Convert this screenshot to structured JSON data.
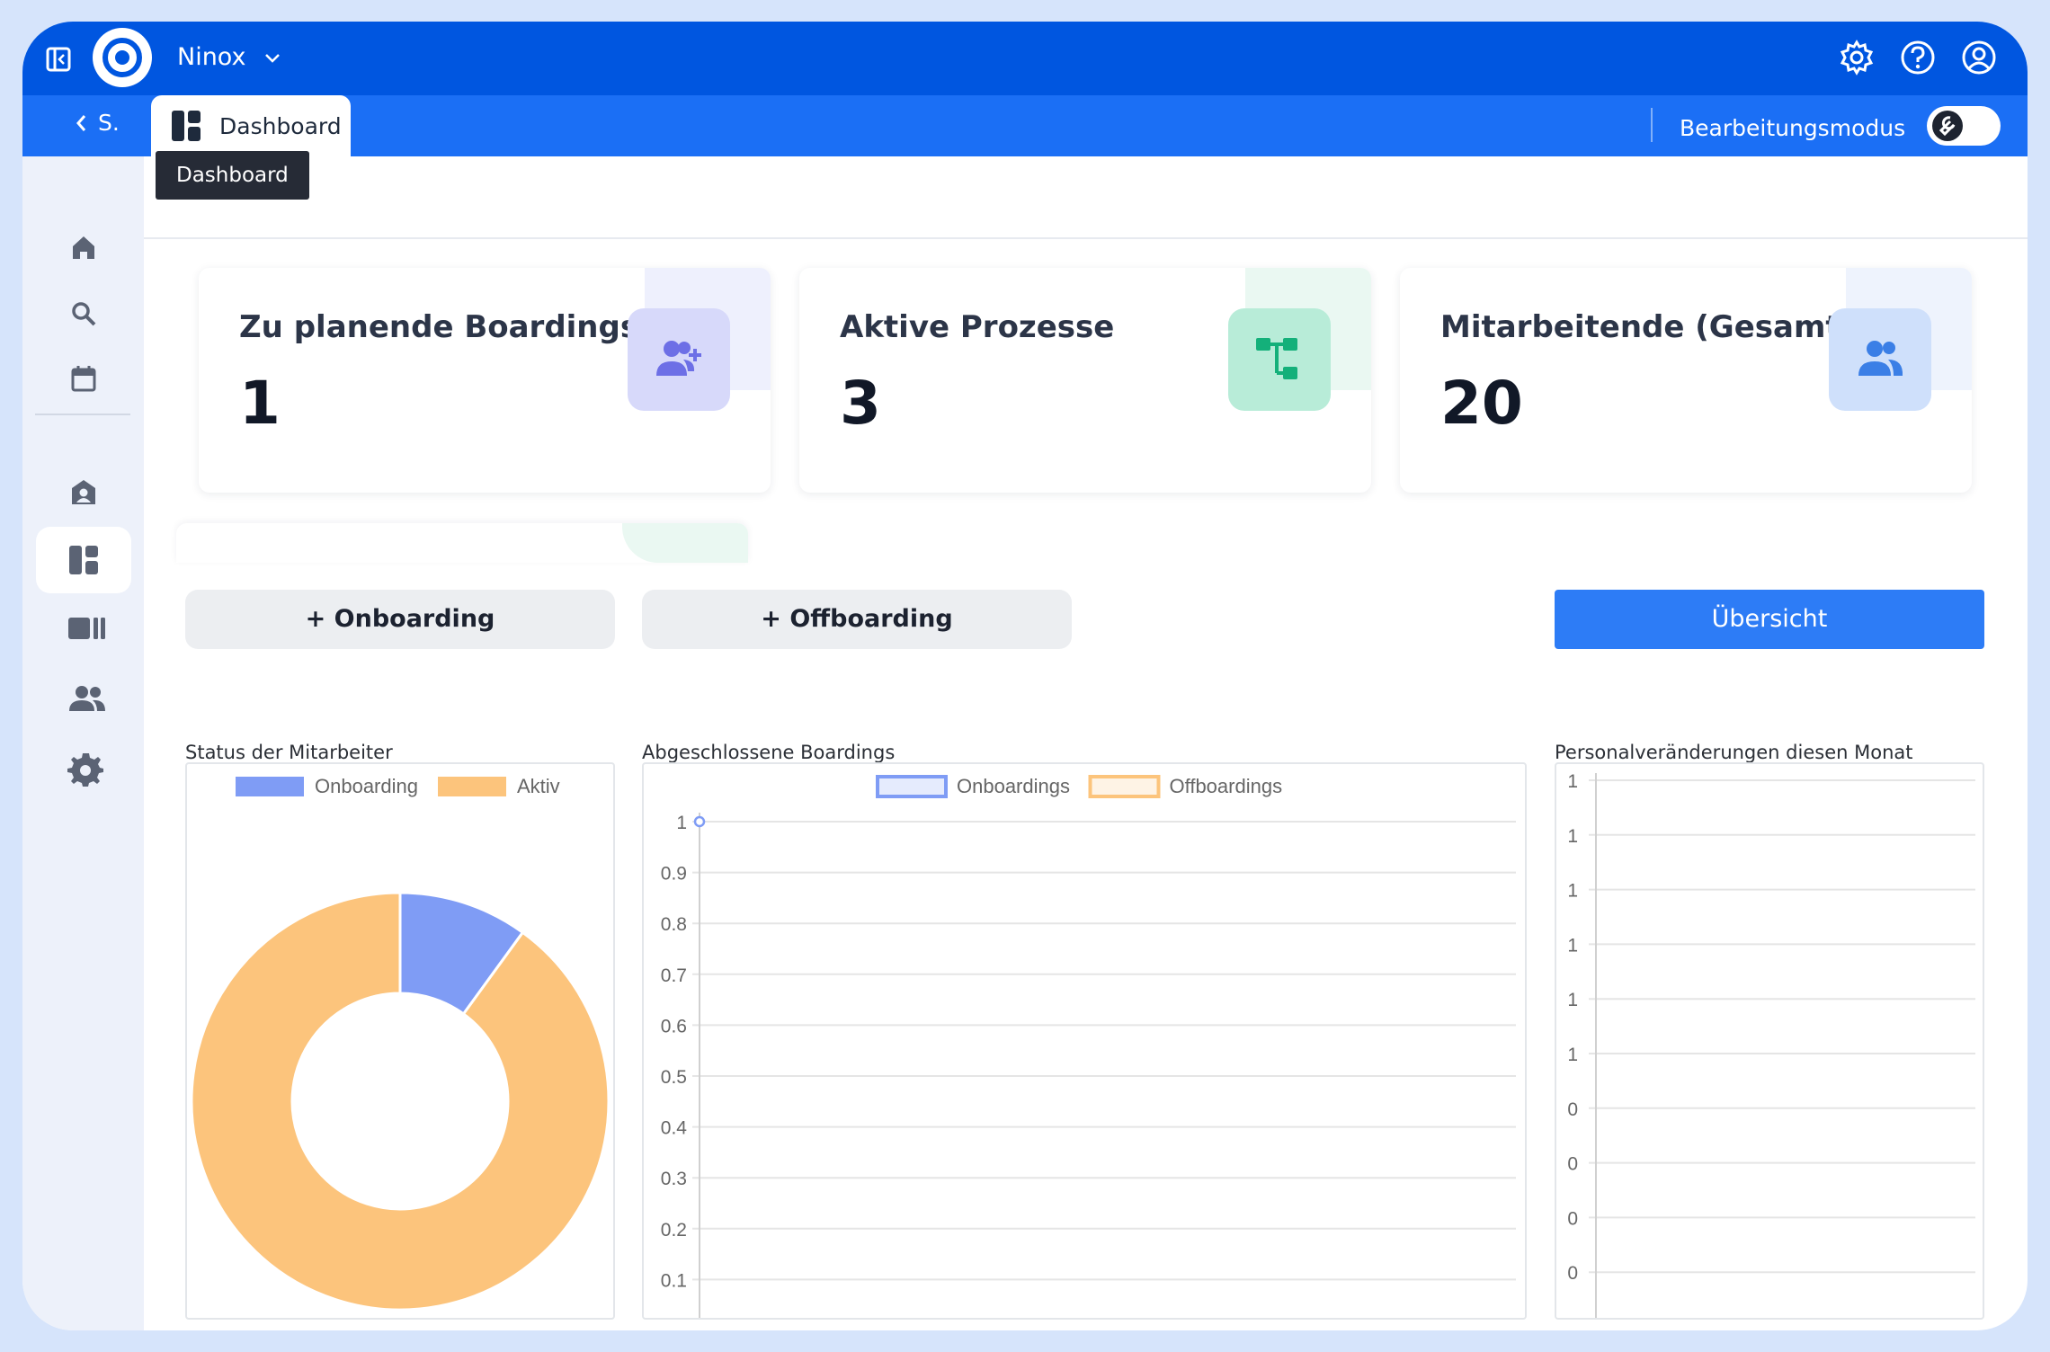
{
  "app": {
    "name": "Ninox"
  },
  "subbar": {
    "back_label": "S.",
    "tab_label": "Dashboard",
    "edit_mode_label": "Bearbeitungsmodus"
  },
  "page": {
    "title_chip": "Dashboard"
  },
  "sidebar": {
    "items": [
      {
        "name": "home-icon"
      },
      {
        "name": "search-icon"
      },
      {
        "name": "calendar-icon"
      },
      {
        "name": "contact-icon"
      },
      {
        "name": "dashboard-icon",
        "active": true
      },
      {
        "name": "columns-icon"
      },
      {
        "name": "users-icon"
      },
      {
        "name": "gear-icon"
      }
    ]
  },
  "cards": [
    {
      "title": "Zu planende Boardings",
      "value": "1",
      "icon": "user-plus-icon",
      "icon_bg": "#d7d9fa",
      "icon_color": "#6d6fe6",
      "deco": "#eef0fd"
    },
    {
      "title": "Aktive Prozesse",
      "value": "3",
      "icon": "process-tree-icon",
      "icon_bg": "#b8ecd8",
      "icon_color": "#14b07a",
      "deco": "#eaf8f2"
    },
    {
      "title": "Mitarbeitende (Gesamt)",
      "value": "20",
      "icon": "users-icon",
      "icon_bg": "#cfe0fb",
      "icon_color": "#3b7fe6",
      "deco": "#eef3fd"
    }
  ],
  "buttons": {
    "onboarding": "+ Onboarding",
    "offboarding": "+ Offboarding",
    "overview": "Übersicht"
  },
  "chart_data": [
    {
      "type": "pie",
      "title": "Status der Mitarbeiter",
      "labels": [
        "Onboarding",
        "Aktiv"
      ],
      "values": [
        2,
        18
      ],
      "colors": [
        "#7f9cf5",
        "#fcc47c"
      ],
      "legend": "top",
      "donut": true
    },
    {
      "type": "line",
      "title": "Abgeschlossene Boardings",
      "series": [
        {
          "name": "Onboardings",
          "values": [
            1
          ],
          "color": "#7f9cf5"
        },
        {
          "name": "Offboardings",
          "values": [],
          "color": "#fcc47c"
        }
      ],
      "y_ticks": [
        "1",
        "0.9",
        "0.8",
        "0.7",
        "0.6",
        "0.5",
        "0.4",
        "0.3",
        "0.2",
        "0.1"
      ],
      "legend": "top",
      "grid": true
    },
    {
      "type": "bar",
      "title": "Personalveränderungen diesen Monat",
      "series": [],
      "y_ticks": [
        "1",
        "1",
        "1",
        "1",
        "1",
        "1",
        "0",
        "0",
        "0",
        "0"
      ],
      "grid": true
    }
  ]
}
